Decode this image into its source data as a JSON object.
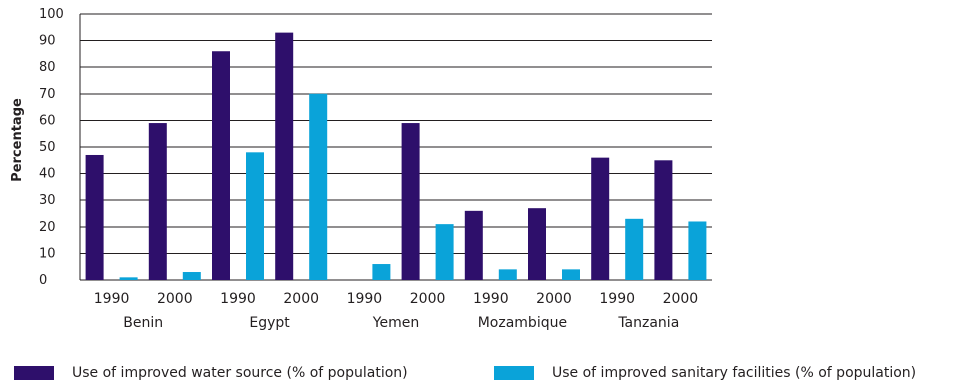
{
  "chart_data": {
    "type": "bar",
    "ylabel": "Percentage",
    "xlabel": "",
    "ylim": [
      0,
      100
    ],
    "yticks": [
      0,
      10,
      20,
      30,
      40,
      50,
      60,
      70,
      80,
      90,
      100
    ],
    "grid": true,
    "legend_position": "bottom",
    "countries": [
      "Benin",
      "Egypt",
      "Yemen",
      "Mozambique",
      "Tanzania"
    ],
    "categories": [
      "1990",
      "2000",
      "1990",
      "2000",
      "1990",
      "2000",
      "1990",
      "2000",
      "1990",
      "2000"
    ],
    "series": [
      {
        "name": "Use of improved water source (% of population)",
        "color": "#2e0f6b",
        "values": [
          47,
          59,
          86,
          93,
          null,
          59,
          26,
          27,
          46,
          45
        ]
      },
      {
        "name": "Use of improved sanitary facilities (% of population)",
        "color": "#0aa3d9",
        "values": [
          1,
          3,
          48,
          70,
          6,
          21,
          4,
          4,
          23,
          22
        ]
      }
    ]
  }
}
